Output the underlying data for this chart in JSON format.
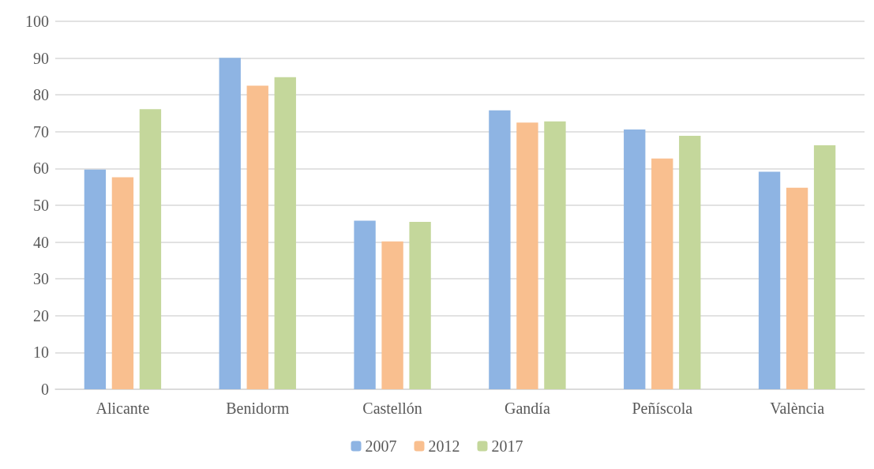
{
  "chart_data": {
    "type": "bar",
    "categories": [
      "Alicante",
      "Benidorm",
      "Castellón",
      "Gandía",
      "Peñíscola",
      "València"
    ],
    "series": [
      {
        "name": "2007",
        "color": "#8eb4e3",
        "values": [
          59.7,
          90.1,
          45.8,
          75.8,
          70.6,
          59.1
        ]
      },
      {
        "name": "2012",
        "color": "#f9bf8f",
        "values": [
          57.6,
          82.5,
          40.2,
          72.5,
          62.7,
          54.8
        ]
      },
      {
        "name": "2017",
        "color": "#c4d79b",
        "values": [
          76.1,
          84.8,
          45.5,
          72.8,
          68.9,
          66.3
        ]
      }
    ],
    "ylim": [
      0,
      100
    ],
    "yticks": [
      0,
      10,
      20,
      30,
      40,
      50,
      60,
      70,
      80,
      90,
      100
    ],
    "grid": "y",
    "legend": "bottom"
  }
}
